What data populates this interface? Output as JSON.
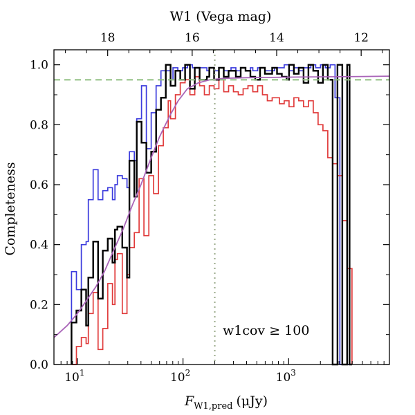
{
  "chart_data": {
    "type": "line",
    "title": "",
    "xlabel_main": "F",
    "xlabel_sub": "W1,pred",
    "xlabel_unit": "(μJy)",
    "ylabel": "Completeness",
    "top_axis_label": "W1 (Vega mag)",
    "annotation": "w1cov ≥ 100",
    "x_scale": "log",
    "xlim": [
      6.0,
      9000
    ],
    "ylim": [
      0.0,
      1.05
    ],
    "grid": false,
    "x_ticks": [
      {
        "value": 10,
        "base": "10",
        "exp": "1"
      },
      {
        "value": 100,
        "base": "10",
        "exp": "2"
      },
      {
        "value": 1000,
        "base": "10",
        "exp": "3"
      }
    ],
    "y_ticks": [
      {
        "value": 0.0,
        "label": "0.0"
      },
      {
        "value": 0.2,
        "label": "0.2"
      },
      {
        "value": 0.4,
        "label": "0.4"
      },
      {
        "value": 0.6,
        "label": "0.6"
      },
      {
        "value": 0.8,
        "label": "0.8"
      },
      {
        "value": 1.0,
        "label": "1.0"
      }
    ],
    "top_ticks": [
      {
        "mag": 18,
        "label": "18"
      },
      {
        "mag": 16,
        "label": "16"
      },
      {
        "mag": 14,
        "label": "14"
      },
      {
        "mag": 12,
        "label": "12"
      }
    ],
    "top_axis_zero_point_flux_uJy": 306800000,
    "reference_lines": {
      "horizontal_dashed": 0.95,
      "vertical_dotted_x": 200
    },
    "colors": {
      "blue": "#3b3bdd",
      "black": "#000000",
      "red": "#e03b3b",
      "fit": "#a964b8",
      "dash": "#8fbf80",
      "dot": "#9aaa8a"
    },
    "bin_edges": [
      8.8,
      9.3,
      9.8,
      10.3,
      10.9,
      11.5,
      12.1,
      12.7,
      13.4,
      14.1,
      14.9,
      15.7,
      16.5,
      17.4,
      18.4,
      19.4,
      20.4,
      21.5,
      22.7,
      23.9,
      25.2,
      26.6,
      28.0,
      29.5,
      31.1,
      32.8,
      34.6,
      36.5,
      38.4,
      40.5,
      42.7,
      45.0,
      47.5,
      50.0,
      52.7,
      55.6,
      58.6,
      61.8,
      65.1,
      68.7,
      72.4,
      76.3,
      80.4,
      84.8,
      89.3,
      94.2,
      99.3,
      104.7,
      110.3,
      116.3,
      122.6,
      129.2,
      136.2,
      143.6,
      151.3,
      159.5,
      168.2,
      177.3,
      186.9,
      197.0,
      207.6,
      218.9,
      230.7,
      243.2,
      256.4,
      270.3,
      284.9,
      300.3,
      316.6,
      333.7,
      351.8,
      370.8,
      390.9,
      412.1,
      434.4,
      457.9,
      482.7,
      508.8,
      536.4,
      565.4,
      596.1,
      628.3,
      662.3,
      698.2,
      736.0,
      775.9,
      817.9,
      862.2,
      908.9,
      958.1,
      1010.0,
      1064.7,
      1122.4,
      1183.2,
      1247.3,
      1314.8,
      1386.0,
      1461.1,
      1540.3,
      1623.7,
      1711.6,
      1804.3,
      1902.1,
      2005.1,
      2113.7,
      2228.2,
      2348.9,
      2476.1,
      2610.2,
      2751.6,
      2900.7,
      3057.8,
      3223.4,
      3398.0,
      3582.1,
      3776.1,
      3980.6,
      4196.2
    ],
    "series": [
      {
        "name": "",
        "color_key": "blue",
        "values": [
          0.31,
          0.31,
          0.25,
          0.25,
          0.4,
          0.4,
          0.41,
          0.55,
          0.55,
          0.65,
          0.65,
          0.55,
          0.55,
          0.58,
          0.58,
          0.59,
          0.59,
          0.55,
          0.6,
          0.63,
          0.63,
          0.62,
          0.62,
          0.59,
          0.71,
          0.71,
          0.68,
          0.82,
          0.82,
          0.93,
          0.93,
          0.72,
          0.72,
          0.84,
          0.84,
          0.93,
          0.93,
          0.98,
          0.98,
          0.98,
          0.98,
          0.95,
          0.99,
          0.99,
          0.98,
          0.98,
          0.99,
          0.99,
          1.0,
          1.0,
          0.99,
          0.99,
          0.99,
          0.99,
          0.99,
          0.99,
          0.98,
          0.99,
          0.99,
          0.98,
          0.98,
          0.99,
          0.99,
          0.98,
          0.98,
          0.98,
          0.99,
          0.99,
          0.98,
          0.98,
          0.99,
          0.99,
          0.98,
          0.98,
          0.99,
          0.98,
          0.98,
          0.99,
          0.99,
          0.99,
          0.98,
          0.98,
          0.98,
          0.98,
          0.99,
          0.99,
          0.99,
          0.99,
          1.0,
          1.0,
          0.98,
          0.98,
          0.99,
          0.99,
          0.98,
          0.98,
          0.99,
          0.99,
          0.99,
          1.0,
          1.0,
          0.99,
          0.99,
          1.0,
          1.0,
          0.99,
          0.99,
          1.0,
          1.0,
          0.89,
          0.89,
          0.0,
          0.0,
          0.0,
          0.0,
          0.0
        ]
      },
      {
        "name": "",
        "color_key": "red",
        "values": [
          0.0,
          0.0,
          0.06,
          0.06,
          0.09,
          0.09,
          0.07,
          0.17,
          0.17,
          0.24,
          0.24,
          0.05,
          0.05,
          0.12,
          0.12,
          0.27,
          0.27,
          0.2,
          0.35,
          0.37,
          0.37,
          0.17,
          0.17,
          0.3,
          0.39,
          0.39,
          0.44,
          0.44,
          0.62,
          0.62,
          0.43,
          0.43,
          0.63,
          0.63,
          0.57,
          0.57,
          0.73,
          0.73,
          0.79,
          0.79,
          0.88,
          0.82,
          0.82,
          0.9,
          0.9,
          0.94,
          0.94,
          0.95,
          0.95,
          0.9,
          0.9,
          0.96,
          0.96,
          0.93,
          0.93,
          0.9,
          0.9,
          0.93,
          0.93,
          0.92,
          0.92,
          0.95,
          0.95,
          0.91,
          0.91,
          0.93,
          0.93,
          0.91,
          0.91,
          0.9,
          0.9,
          0.92,
          0.92,
          0.93,
          0.93,
          0.91,
          0.91,
          0.93,
          0.93,
          0.9,
          0.9,
          0.88,
          0.88,
          0.89,
          0.89,
          0.89,
          0.87,
          0.87,
          0.88,
          0.88,
          0.86,
          0.86,
          0.89,
          0.89,
          0.88,
          0.88,
          0.86,
          0.86,
          0.88,
          0.88,
          0.84,
          0.84,
          0.8,
          0.8,
          0.78,
          0.78,
          0.69,
          0.69,
          0.67,
          0.67,
          0.63,
          0.63,
          0.48,
          0.48,
          0.32,
          0.32
        ]
      },
      {
        "name": "",
        "color_key": "black",
        "values": [
          0.14,
          0.14,
          0.18,
          0.18,
          0.25,
          0.25,
          0.13,
          0.29,
          0.29,
          0.41,
          0.41,
          0.22,
          0.22,
          0.38,
          0.38,
          0.42,
          0.42,
          0.34,
          0.45,
          0.46,
          0.46,
          0.39,
          0.39,
          0.29,
          0.68,
          0.68,
          0.56,
          0.81,
          0.81,
          0.74,
          0.74,
          0.64,
          0.64,
          0.71,
          0.71,
          0.85,
          0.85,
          0.89,
          0.89,
          1.0,
          1.0,
          0.93,
          0.93,
          0.98,
          0.98,
          0.95,
          0.95,
          1.0,
          1.0,
          0.92,
          0.92,
          0.99,
          0.99,
          0.95,
          0.95,
          0.95,
          0.96,
          0.99,
          0.99,
          0.95,
          0.95,
          0.99,
          0.99,
          0.96,
          0.96,
          0.98,
          0.98,
          0.98,
          0.96,
          0.96,
          0.99,
          0.99,
          0.98,
          0.98,
          0.96,
          0.96,
          0.95,
          0.95,
          0.99,
          0.99,
          0.97,
          0.97,
          0.97,
          0.99,
          0.99,
          0.97,
          0.97,
          0.96,
          0.96,
          0.95,
          1.0,
          1.0,
          0.97,
          0.97,
          0.99,
          0.99,
          0.94,
          0.94,
          1.0,
          1.0,
          0.98,
          0.98,
          0.94,
          0.94,
          1.0,
          1.0,
          0.95,
          0.95,
          0.0,
          0.0,
          1.0,
          1.0,
          0.0,
          0.0,
          1.0,
          0.0
        ]
      }
    ],
    "fit_curve": {
      "color_key": "fit",
      "x": [
        6.0,
        8.0,
        10.0,
        12.0,
        15.0,
        18.0,
        22.0,
        27.0,
        33.0,
        40.0,
        50.0,
        60.0,
        75.0,
        90.0,
        110.0,
        140.0,
        180.0,
        250.0,
        400.0,
        700.0,
        1200.0,
        2500.0,
        5000.0,
        9000.0
      ],
      "y": [
        0.09,
        0.13,
        0.17,
        0.21,
        0.26,
        0.31,
        0.38,
        0.45,
        0.53,
        0.6,
        0.69,
        0.76,
        0.83,
        0.88,
        0.92,
        0.94,
        0.95,
        0.955,
        0.957,
        0.958,
        0.959,
        0.96,
        0.961,
        0.962
      ]
    }
  }
}
